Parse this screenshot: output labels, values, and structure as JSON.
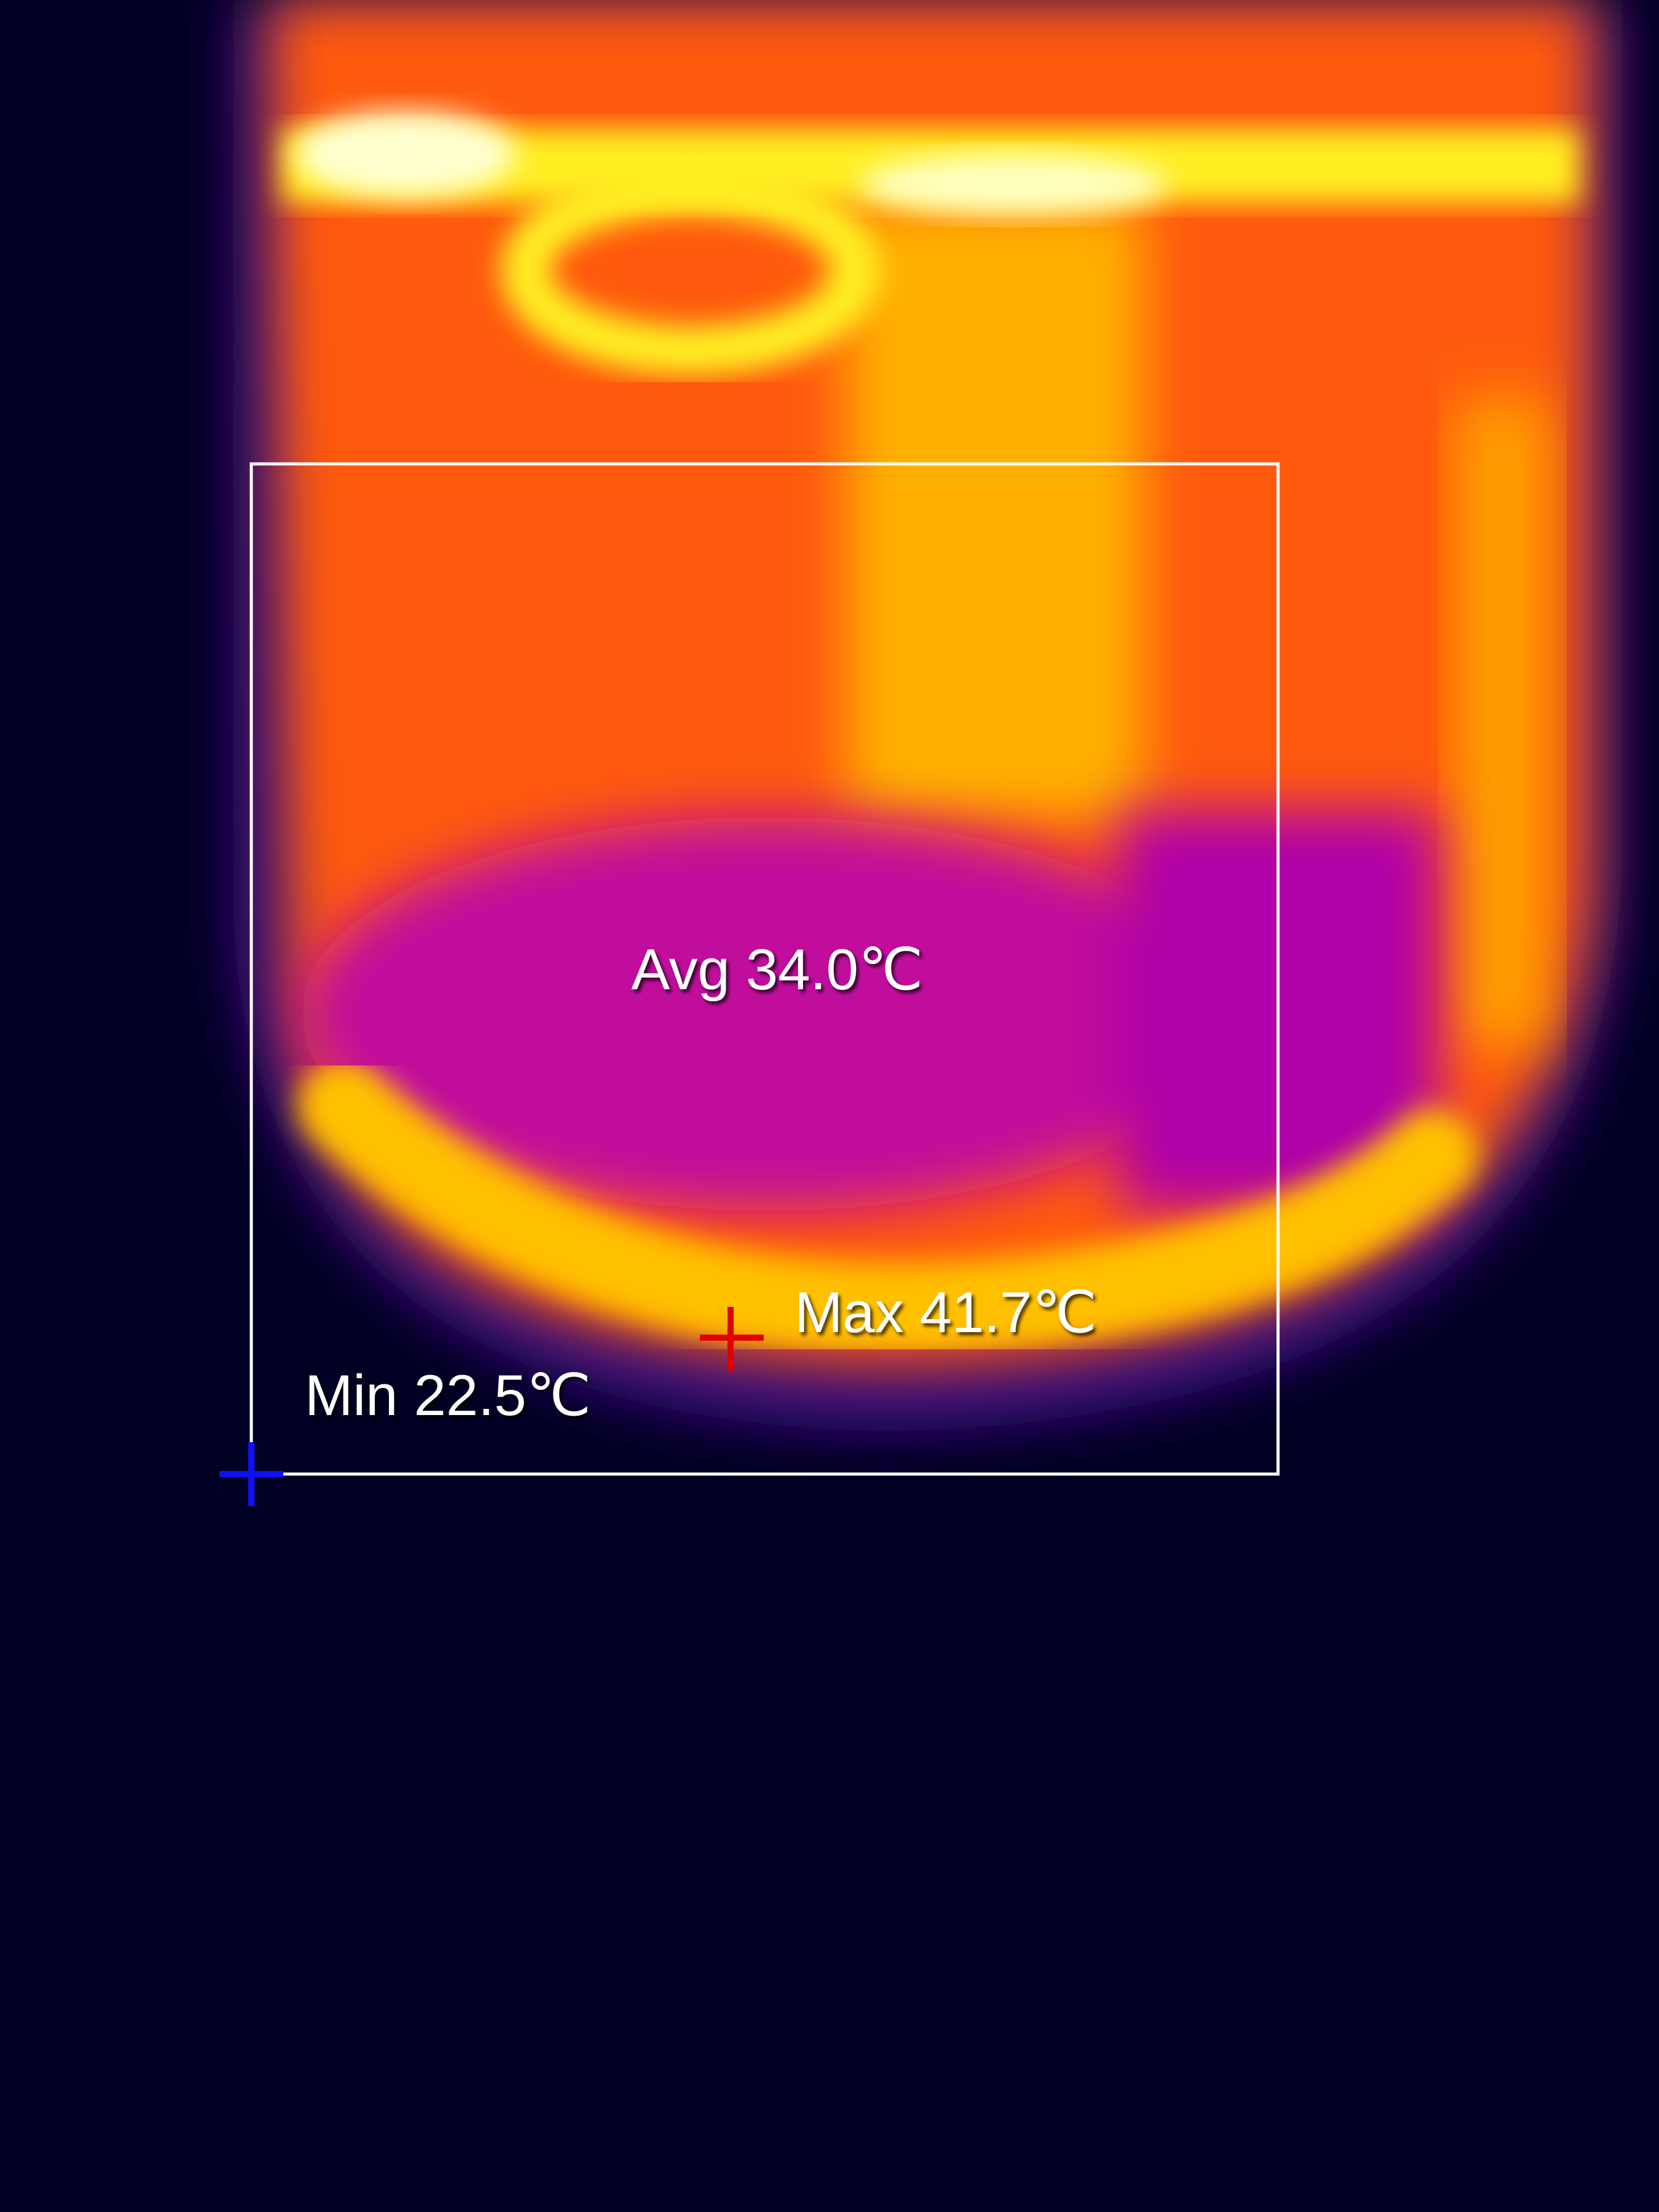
{
  "overlay": {
    "avg": "Avg 34.0℃",
    "max": "Max 41.7℃",
    "min": "Min 22.5℃"
  }
}
